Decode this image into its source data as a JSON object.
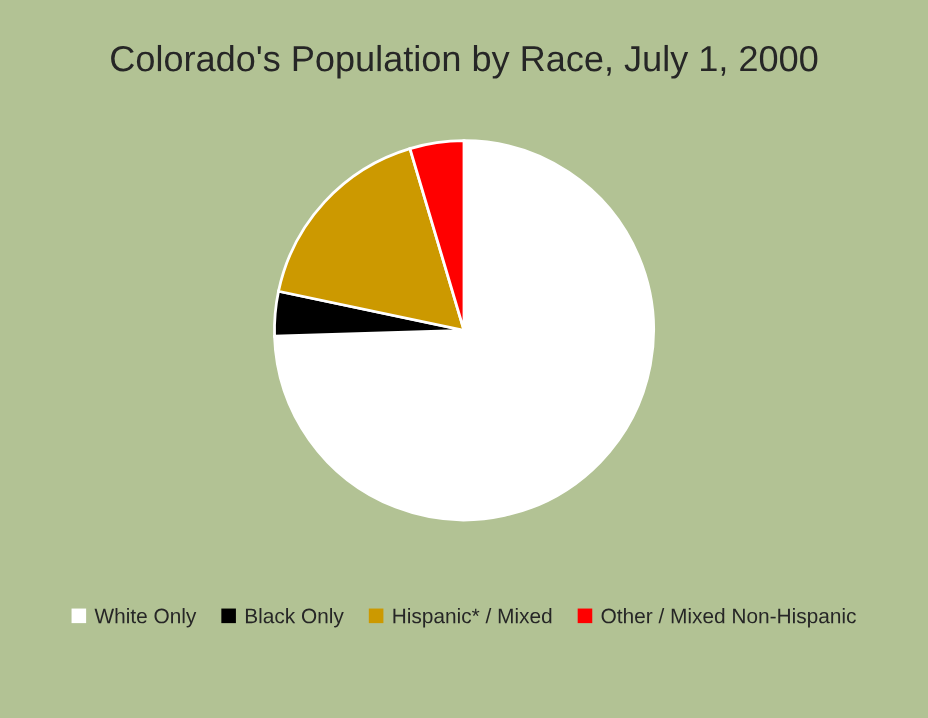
{
  "chart_data": {
    "type": "pie",
    "title": "Colorado's Population by Race, July 1, 2000",
    "categories": [
      "White Only",
      "Black Only",
      "Hispanic* / Mixed",
      "Other / Mixed Non-Hispanic"
    ],
    "values": [
      74.5,
      3.8,
      17.1,
      4.6
    ],
    "colors": [
      "#ffffff",
      "#000000",
      "#cc9900",
      "#ff0000"
    ],
    "legend": "bottom"
  }
}
